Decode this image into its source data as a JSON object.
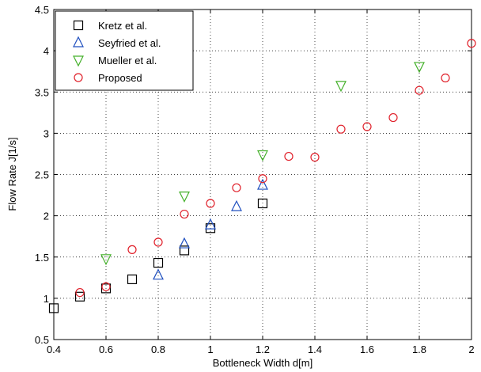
{
  "chart_data": {
    "type": "scatter",
    "title": "",
    "xlabel": "Bottleneck Width d[m]",
    "ylabel": "Flow Rate J[1/s]",
    "xlim": [
      0.4,
      2.0
    ],
    "ylim": [
      0.5,
      4.5
    ],
    "x_ticks": [
      "0.4",
      "0.6",
      "0.8",
      "1",
      "1.2",
      "1.4",
      "1.6",
      "1.8",
      "2"
    ],
    "y_ticks": [
      "0.5",
      "1",
      "1.5",
      "2",
      "2.5",
      "3",
      "3.5",
      "4",
      "4.5"
    ],
    "grid": true,
    "legend_position": "top-left",
    "series": [
      {
        "name": "Kretz et al.",
        "marker": "square",
        "color": "#000000",
        "points": [
          [
            0.4,
            0.88
          ],
          [
            0.5,
            1.02
          ],
          [
            0.6,
            1.12
          ],
          [
            0.7,
            1.23
          ],
          [
            0.8,
            1.43
          ],
          [
            0.9,
            1.58
          ],
          [
            1.0,
            1.85
          ],
          [
            1.2,
            2.15
          ]
        ]
      },
      {
        "name": "Seyfried et al.",
        "marker": "triangle-up",
        "color": "#1f4fbf",
        "points": [
          [
            0.8,
            1.28
          ],
          [
            0.9,
            1.66
          ],
          [
            1.0,
            1.89
          ],
          [
            1.1,
            2.11
          ],
          [
            1.2,
            2.37
          ]
        ]
      },
      {
        "name": "Mueller et al.",
        "marker": "triangle-down",
        "color": "#44b02a",
        "points": [
          [
            0.6,
            1.48
          ],
          [
            0.9,
            2.24
          ],
          [
            1.2,
            2.74
          ],
          [
            1.5,
            3.58
          ],
          [
            1.8,
            3.81
          ]
        ]
      },
      {
        "name": "Proposed",
        "marker": "circle",
        "color": "#e0202a",
        "points": [
          [
            0.5,
            1.07
          ],
          [
            0.6,
            1.14
          ],
          [
            0.7,
            1.59
          ],
          [
            0.8,
            1.68
          ],
          [
            0.9,
            2.02
          ],
          [
            1.0,
            2.15
          ],
          [
            1.1,
            2.34
          ],
          [
            1.2,
            2.45
          ],
          [
            1.3,
            2.72
          ],
          [
            1.4,
            2.71
          ],
          [
            1.5,
            3.05
          ],
          [
            1.6,
            3.08
          ],
          [
            1.7,
            3.19
          ],
          [
            1.8,
            3.52
          ],
          [
            1.9,
            3.67
          ],
          [
            2.0,
            4.09
          ]
        ]
      }
    ]
  }
}
